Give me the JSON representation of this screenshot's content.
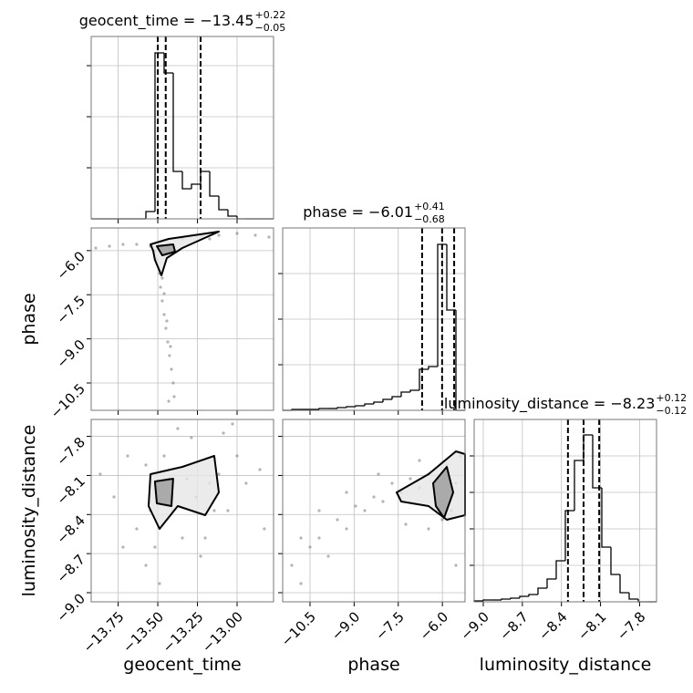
{
  "chart_data": [
    {
      "type": "histogram",
      "title": "geocent_time = −13.45",
      "title_sup": "+0.22",
      "title_sub": "−0.05",
      "color": "#000000",
      "grid": true,
      "bins": [
        -13.92,
        -13.8625,
        -13.805,
        -13.7475,
        -13.69,
        -13.6325,
        -13.575,
        -13.5175,
        -13.46,
        -13.4025,
        -13.345,
        -13.2875,
        -13.23,
        -13.1725,
        -13.115,
        -13.0575,
        -13.0,
        -12.9425,
        -12.885,
        -12.8275,
        -12.77
      ],
      "counts": [
        0,
        0,
        0,
        0,
        0,
        0,
        8,
        182,
        160,
        52,
        33,
        38,
        52,
        25,
        10,
        3,
        0,
        0,
        0,
        0
      ],
      "quantiles": [
        -13.5,
        -13.45,
        -13.23
      ],
      "xlim": [
        -13.92,
        -12.77
      ],
      "xticks": [
        -13.75,
        -13.5,
        -13.25,
        -13.0
      ],
      "ylim": [
        0,
        200
      ],
      "yticks": [
        56,
        112,
        168
      ]
    },
    {
      "type": "scatter",
      "color": "#777777",
      "grid": true,
      "ylabel": "phase",
      "x": [
        -13.891,
        -13.805,
        -13.719,
        -13.633,
        -13.546,
        -13.345,
        -13.23,
        -13.115,
        -13.0,
        -12.885,
        -12.799,
        -13.506,
        -13.489,
        -13.483,
        -13.472,
        -13.46,
        -13.449,
        -13.437,
        -13.426,
        -13.414,
        -13.403,
        -13.397,
        -13.431,
        -13.472,
        -13.46,
        -13.443,
        -13.42,
        -13.518,
        -13.431,
        -13.173
      ],
      "y": [
        -5.912,
        -5.85,
        -5.788,
        -5.788,
        -5.85,
        -5.602,
        -5.478,
        -5.478,
        -5.416,
        -5.478,
        -5.54,
        -6.315,
        -6.78,
        -7.245,
        -7.71,
        -8.175,
        -8.64,
        -9.105,
        -9.57,
        -10.035,
        -10.5,
        -10.965,
        -11.12,
        -6.935,
        -7.462,
        -8.392,
        -9.26,
        -6.005,
        -5.912,
        -5.602
      ],
      "contours": [
        {
          "x": [
            -13.546,
            -13.431,
            -13.115,
            -13.345,
            -13.443,
            -13.477,
            -13.518,
            -13.529
          ],
          "y": [
            -5.788,
            -5.602,
            -5.354,
            -5.912,
            -6.253,
            -6.842,
            -6.315,
            -6.005
          ]
        },
        {
          "x": [
            -13.506,
            -13.403,
            -13.391,
            -13.472
          ],
          "y": [
            -5.85,
            -5.788,
            -6.036,
            -6.16
          ]
        }
      ],
      "xlim": [
        -13.92,
        -12.77
      ],
      "xticks": [
        -13.75,
        -13.5,
        -13.25,
        -13.0
      ],
      "ylim": [
        -11.43,
        -5.23
      ],
      "yticks": [
        {
          "value": -10.5,
          "label": "−10.5"
        },
        {
          "value": -9.0,
          "label": "−9.0"
        },
        {
          "value": -7.5,
          "label": "−7.5"
        },
        {
          "value": -6.0,
          "label": "−6.0"
        }
      ]
    },
    {
      "type": "histogram",
      "title": "phase = −6.01",
      "title_sup": "+0.41",
      "title_sub": "−0.68",
      "color": "#000000",
      "grid": true,
      "bins": [
        -11.43,
        -11.12,
        -10.81,
        -10.5,
        -10.19,
        -9.88,
        -9.57,
        -9.26,
        -8.95,
        -8.64,
        -8.33,
        -8.02,
        -7.71,
        -7.4,
        -7.09,
        -6.78,
        -6.47,
        -6.16,
        -5.85,
        -5.54,
        -5.23
      ],
      "counts": [
        0,
        1,
        1,
        1,
        2,
        2,
        3,
        4,
        5,
        7,
        9,
        12,
        15,
        20,
        22,
        45,
        48,
        182,
        110,
        0
      ],
      "quantiles": [
        -6.69,
        -6.01,
        -5.6
      ],
      "xlim": [
        -11.43,
        -5.23
      ],
      "xticks": [
        -10.5,
        -9.0,
        -7.5,
        -6.0
      ],
      "ylim": [
        0,
        200
      ],
      "yticks": [
        50,
        100,
        150
      ]
    },
    {
      "type": "scatter",
      "color": "#777777",
      "grid": true,
      "xlabel": "geocent_time",
      "ylabel": "luminosity_distance",
      "x": [
        -13.863,
        -13.776,
        -13.69,
        -13.633,
        -13.575,
        -13.518,
        -13.46,
        -13.403,
        -13.345,
        -13.288,
        -13.23,
        -13.173,
        -13.115,
        -13.058,
        -13.0,
        -12.943,
        -12.856,
        -13.489,
        -13.374,
        -13.259,
        -13.575,
        -13.316,
        -13.086,
        -13.029,
        -13.201,
        -13.719,
        -12.828,
        -13.431,
        -13.546,
        -13.144
      ],
      "y": [
        -8.09,
        -8.265,
        -7.95,
        -8.51,
        -8.79,
        -8.65,
        -7.95,
        -8.37,
        -8.58,
        -7.81,
        -8.72,
        -8.16,
        -8.09,
        -8.37,
        -7.95,
        -8.16,
        -8.055,
        -8.93,
        -7.74,
        -8.265,
        -8.02,
        -8.125,
        -7.775,
        -7.705,
        -8.58,
        -8.65,
        -8.51,
        -8.125,
        -8.37,
        -8.37
      ],
      "contours": [
        {
          "x": [
            -13.546,
            -13.345,
            -13.144,
            -13.115,
            -13.201,
            -13.374,
            -13.489,
            -13.558
          ],
          "y": [
            -8.09,
            -8.034,
            -7.95,
            -8.23,
            -8.405,
            -8.335,
            -8.51,
            -8.335
          ]
        },
        {
          "x": [
            -13.518,
            -13.403,
            -13.414,
            -13.506
          ],
          "y": [
            -8.146,
            -8.125,
            -8.335,
            -8.314
          ]
        }
      ],
      "xlim": [
        -13.92,
        -12.77
      ],
      "xticks": [
        {
          "value": -13.75,
          "label": "−13.75"
        },
        {
          "value": -13.5,
          "label": "−13.50"
        },
        {
          "value": -13.25,
          "label": "−13.25"
        },
        {
          "value": -13.0,
          "label": "−13.00"
        }
      ],
      "ylim": [
        -9.07,
        -7.67
      ],
      "yticks": [
        {
          "value": -9.0,
          "label": "−9.0"
        },
        {
          "value": -8.7,
          "label": "−8.7"
        },
        {
          "value": -8.4,
          "label": "−8.4"
        },
        {
          "value": -8.1,
          "label": "−8.1"
        },
        {
          "value": -7.8,
          "label": "−7.8"
        }
      ]
    },
    {
      "type": "scatter",
      "color": "#777777",
      "grid": true,
      "xlabel": "phase",
      "x": [
        -11.12,
        -10.81,
        -10.5,
        -10.19,
        -9.88,
        -9.57,
        -9.26,
        -8.95,
        -8.64,
        -8.33,
        -8.02,
        -7.71,
        -7.4,
        -7.09,
        -6.78,
        -6.47,
        -6.16,
        -5.85,
        -5.54,
        -5.385,
        -5.695,
        -6.005,
        -5.54,
        -6.47,
        -10.19,
        -9.26,
        -8.175,
        -7.245,
        -10.81,
        -6.78
      ],
      "y": [
        -8.79,
        -8.93,
        -8.65,
        -8.58,
        -8.72,
        -8.44,
        -8.51,
        -8.335,
        -8.37,
        -8.265,
        -8.3,
        -8.16,
        -8.23,
        -8.125,
        -8.195,
        -8.09,
        -8.23,
        -8.02,
        -8.16,
        -7.95,
        -8.37,
        -8.44,
        -8.79,
        -8.51,
        -8.37,
        -8.23,
        -8.09,
        -8.475,
        -8.58,
        -7.985
      ],
      "contours": [
        {
          "x": [
            -7.555,
            -6.47,
            -5.54,
            -5.23,
            -5.23,
            -5.85,
            -6.47,
            -7.4
          ],
          "y": [
            -8.23,
            -8.09,
            -7.915,
            -7.936,
            -8.405,
            -8.44,
            -8.335,
            -8.3
          ]
        },
        {
          "x": [
            -6.315,
            -5.85,
            -5.633,
            -5.943,
            -6.222
          ],
          "y": [
            -8.16,
            -8.034,
            -8.23,
            -8.426,
            -8.335
          ]
        }
      ],
      "xlim": [
        -11.43,
        -5.23
      ],
      "xticks": [
        {
          "value": -10.5,
          "label": "−10.5"
        },
        {
          "value": -9.0,
          "label": "−9.0"
        },
        {
          "value": -7.5,
          "label": "−7.5"
        },
        {
          "value": -6.0,
          "label": "−6.0"
        }
      ],
      "ylim": [
        -9.07,
        -7.67
      ],
      "yticks": [
        -9.0,
        -8.7,
        -8.4,
        -8.1,
        -7.8
      ]
    },
    {
      "type": "histogram",
      "title": "luminosity_distance = −8.23",
      "title_sup": "+0.12",
      "title_sub": "−0.12",
      "color": "#000000",
      "grid": true,
      "xlabel": "luminosity_distance",
      "bins": [
        -9.07,
        -9.0,
        -8.93,
        -8.86,
        -8.79,
        -8.72,
        -8.65,
        -8.58,
        -8.51,
        -8.44,
        -8.37,
        -8.3,
        -8.23,
        -8.16,
        -8.09,
        -8.02,
        -7.95,
        -7.88,
        -7.81,
        -7.74,
        -7.67
      ],
      "counts": [
        1,
        2,
        2,
        3,
        4,
        6,
        8,
        15,
        25,
        45,
        100,
        155,
        183,
        125,
        60,
        30,
        10,
        3,
        0,
        0
      ],
      "quantiles": [
        -8.35,
        -8.23,
        -8.11
      ],
      "xlim": [
        -9.07,
        -7.67
      ],
      "xticks": [
        {
          "value": -9.0,
          "label": "−9.0"
        },
        {
          "value": -8.7,
          "label": "−8.7"
        },
        {
          "value": -8.4,
          "label": "−8.4"
        },
        {
          "value": -8.1,
          "label": "−8.1"
        },
        {
          "value": -7.8,
          "label": "−7.8"
        }
      ],
      "ylim": [
        0,
        200
      ],
      "yticks": [
        40,
        80,
        120,
        160
      ]
    }
  ]
}
